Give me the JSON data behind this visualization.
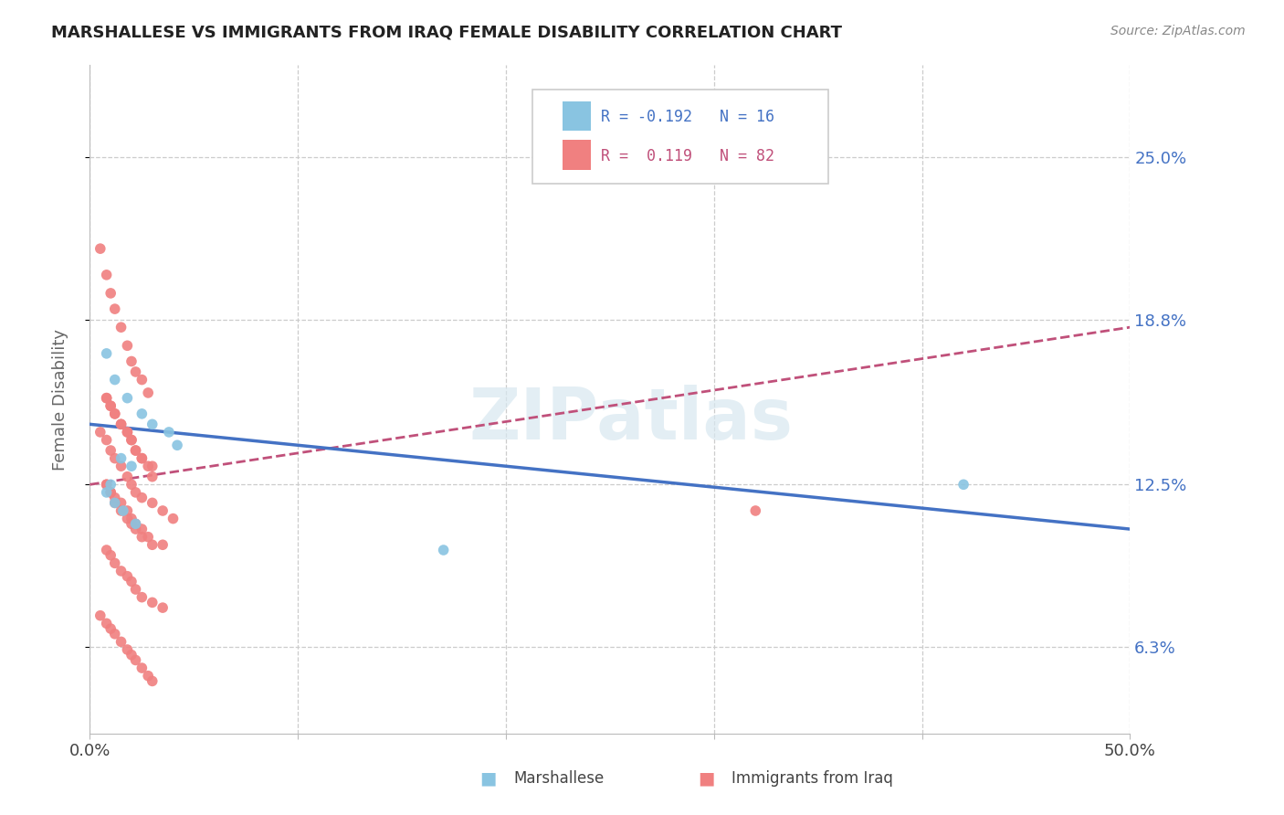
{
  "title": "MARSHALLESE VS IMMIGRANTS FROM IRAQ FEMALE DISABILITY CORRELATION CHART",
  "source": "Source: ZipAtlas.com",
  "xlabel_marshallese": "Marshallese",
  "xlabel_iraq": "Immigrants from Iraq",
  "ylabel": "Female Disability",
  "xmin": 0.0,
  "xmax": 0.5,
  "ymin": 0.03,
  "ymax": 0.285,
  "yticks": [
    0.063,
    0.125,
    0.188,
    0.25
  ],
  "ytick_labels": [
    "6.3%",
    "12.5%",
    "18.8%",
    "25.0%"
  ],
  "color_marshallese": "#89c4e1",
  "color_iraq": "#f08080",
  "color_trend_marshallese": "#4472c4",
  "color_trend_iraq": "#c0507a",
  "watermark": "ZIPatlas",
  "marshallese_x": [
    0.008,
    0.012,
    0.018,
    0.025,
    0.03,
    0.038,
    0.042,
    0.015,
    0.02,
    0.01,
    0.008,
    0.012,
    0.016,
    0.022,
    0.17,
    0.42
  ],
  "marshallese_y": [
    0.175,
    0.165,
    0.158,
    0.152,
    0.148,
    0.145,
    0.14,
    0.135,
    0.132,
    0.125,
    0.122,
    0.118,
    0.115,
    0.11,
    0.1,
    0.125
  ],
  "iraq_x": [
    0.005,
    0.008,
    0.01,
    0.012,
    0.015,
    0.018,
    0.02,
    0.022,
    0.025,
    0.028,
    0.008,
    0.01,
    0.012,
    0.015,
    0.018,
    0.02,
    0.022,
    0.025,
    0.028,
    0.03,
    0.008,
    0.01,
    0.012,
    0.015,
    0.018,
    0.02,
    0.022,
    0.025,
    0.028,
    0.035,
    0.008,
    0.01,
    0.012,
    0.015,
    0.018,
    0.02,
    0.022,
    0.025,
    0.03,
    0.035,
    0.005,
    0.008,
    0.01,
    0.012,
    0.015,
    0.018,
    0.02,
    0.022,
    0.025,
    0.028,
    0.03,
    0.008,
    0.01,
    0.012,
    0.015,
    0.018,
    0.02,
    0.022,
    0.025,
    0.03,
    0.005,
    0.008,
    0.01,
    0.012,
    0.015,
    0.018,
    0.02,
    0.022,
    0.025,
    0.03,
    0.035,
    0.04,
    0.008,
    0.01,
    0.012,
    0.015,
    0.018,
    0.02,
    0.022,
    0.025,
    0.03,
    0.32
  ],
  "iraq_y": [
    0.215,
    0.205,
    0.198,
    0.192,
    0.185,
    0.178,
    0.172,
    0.168,
    0.165,
    0.16,
    0.158,
    0.155,
    0.152,
    0.148,
    0.145,
    0.142,
    0.138,
    0.135,
    0.132,
    0.128,
    0.125,
    0.122,
    0.12,
    0.118,
    0.115,
    0.112,
    0.11,
    0.108,
    0.105,
    0.102,
    0.1,
    0.098,
    0.095,
    0.092,
    0.09,
    0.088,
    0.085,
    0.082,
    0.08,
    0.078,
    0.075,
    0.072,
    0.07,
    0.068,
    0.065,
    0.062,
    0.06,
    0.058,
    0.055,
    0.052,
    0.05,
    0.125,
    0.122,
    0.118,
    0.115,
    0.112,
    0.11,
    0.108,
    0.105,
    0.102,
    0.145,
    0.142,
    0.138,
    0.135,
    0.132,
    0.128,
    0.125,
    0.122,
    0.12,
    0.118,
    0.115,
    0.112,
    0.158,
    0.155,
    0.152,
    0.148,
    0.145,
    0.142,
    0.138,
    0.135,
    0.132,
    0.115
  ],
  "trend_marsh_x0": 0.0,
  "trend_marsh_x1": 0.5,
  "trend_marsh_y0": 0.148,
  "trend_marsh_y1": 0.108,
  "trend_iraq_x0": 0.0,
  "trend_iraq_x1": 0.5,
  "trend_iraq_y0": 0.125,
  "trend_iraq_y1": 0.185
}
